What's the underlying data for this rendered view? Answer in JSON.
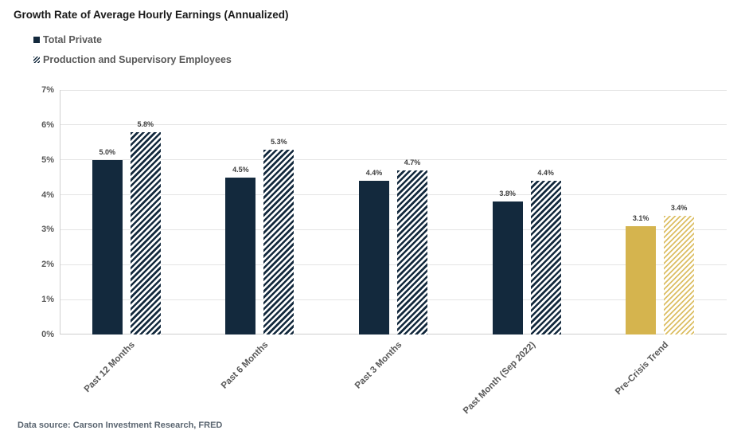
{
  "title": "Growth Rate of Average Hourly Earnings (Annualized)",
  "legend": {
    "items": [
      {
        "label": "Total Private",
        "pattern": "solid"
      },
      {
        "label": "Production and Supervisory Employees",
        "pattern": "hatch"
      }
    ]
  },
  "footer": {
    "source_note": "Data source: Carson Investment Research, FRED"
  },
  "colors": {
    "navy": "#13293D",
    "gold": "#D5B44E",
    "gold_hatch": "#DCBE63",
    "grid": "#E4E4E4",
    "axis_line": "#CFCFCF",
    "title_text": "#1A1A1A",
    "axis_text": "#595959",
    "value_text": "#3D3D3D",
    "source_text": "#5A6570"
  },
  "chart_data": {
    "type": "bar",
    "title": "Growth Rate of Average Hourly Earnings (Annualized)",
    "categories": [
      "Past 12 Months",
      "Past 6 Months",
      "Past 3 Months",
      "Past Month (Sep 2022)",
      "Pre-Crisis Trend"
    ],
    "series": [
      {
        "name": "Total Private",
        "pattern": "solid",
        "values": [
          5.0,
          4.5,
          4.4,
          3.8,
          3.1
        ],
        "labels": [
          "5.0%",
          "4.5%",
          "4.4%",
          "3.8%",
          "3.1%"
        ]
      },
      {
        "name": "Production and Supervisory Employees",
        "pattern": "hatch",
        "values": [
          5.8,
          5.3,
          4.7,
          4.4,
          3.4
        ],
        "labels": [
          "5.8%",
          "5.3%",
          "4.7%",
          "4.4%",
          "3.4%"
        ]
      }
    ],
    "highlight_category": "Pre-Crisis Trend",
    "highlight_color": "#D5B44E",
    "base_color": "#13293D",
    "xlabel": "",
    "ylabel": "",
    "ylim": [
      0,
      7
    ],
    "y_tick_labels": [
      "0%",
      "1%",
      "2%",
      "3%",
      "4%",
      "5%",
      "6%",
      "7%"
    ],
    "grid": true,
    "legend_position": "top-left",
    "x_label_rotation_deg": -45
  }
}
